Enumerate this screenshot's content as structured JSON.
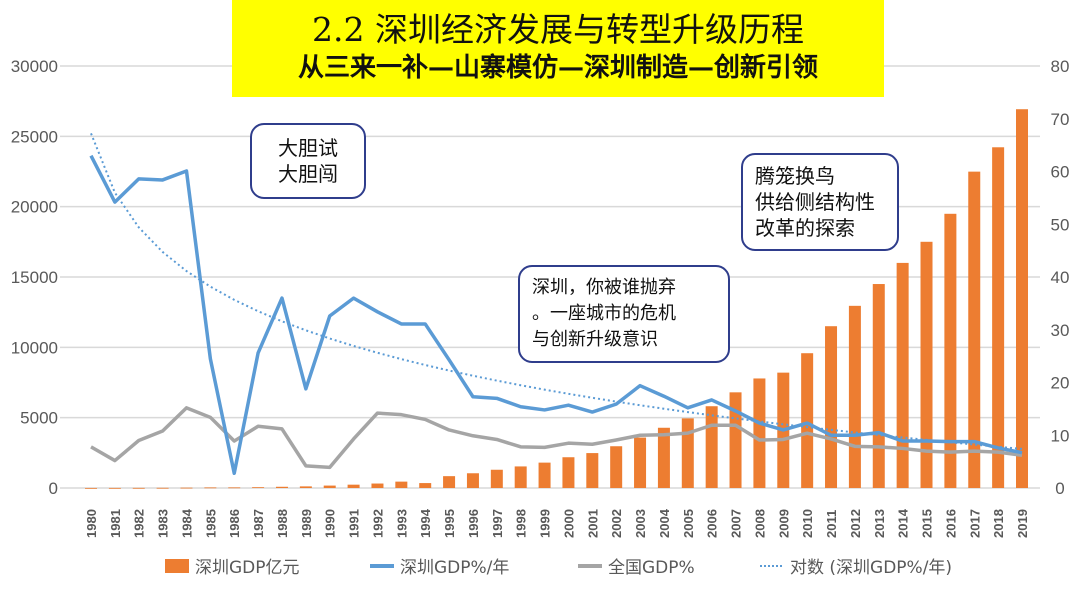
{
  "header": {
    "title": "2.2 深圳经济发展与转型升级历程",
    "subtitle": "从三来一补—山寨模仿—深圳制造—创新引领"
  },
  "annotations": [
    {
      "lines": [
        "大胆试",
        "大胆闯"
      ]
    },
    {
      "lines": [
        "深圳，你被谁抛弃",
        "。一座城市的危机",
        "与创新升级意识"
      ]
    },
    {
      "lines": [
        "腾笼换鸟",
        "供给侧结构性",
        "改革的探索"
      ]
    }
  ],
  "chart_data": {
    "type": "bar+line",
    "categories": [
      "1980",
      "1981",
      "1982",
      "1983",
      "1984",
      "1985",
      "1986",
      "1987",
      "1988",
      "1989",
      "1990",
      "1991",
      "1992",
      "1993",
      "1994",
      "1995",
      "1996",
      "1997",
      "1998",
      "1999",
      "2000",
      "2001",
      "2002",
      "2003",
      "2004",
      "2005",
      "2006",
      "2007",
      "2008",
      "2009",
      "2010",
      "2011",
      "2012",
      "2013",
      "2014",
      "2015",
      "2016",
      "2017",
      "2018",
      "2019"
    ],
    "left_axis": {
      "range": [
        0,
        30000
      ],
      "ticks": [
        "0",
        "5000",
        "10000",
        "15000",
        "20000",
        "25000",
        "30000"
      ]
    },
    "right_axis": {
      "range": [
        0,
        80
      ],
      "ticks": [
        "0",
        "10",
        "20",
        "30",
        "40",
        "50",
        "60",
        "70",
        "80"
      ]
    },
    "grid": "horizontal",
    "legend_placement": "bottom",
    "series": [
      {
        "name": "深圳GDP亿元",
        "type": "bar",
        "axis": "left",
        "color": "#ed7d31",
        "values": [
          2.7,
          5,
          8.3,
          13,
          23.4,
          39,
          41.7,
          55.9,
          86.9,
          115.7,
          171.7,
          236.7,
          317.3,
          453.1,
          350,
          842,
          1048,
          1297,
          1534,
          1804,
          2187,
          2482,
          2969,
          3585,
          4282,
          4950,
          5813,
          6801,
          7787,
          8201,
          9582,
          11502,
          12950,
          14500,
          16002,
          17503,
          19493,
          22490,
          24222,
          26927
        ]
      },
      {
        "name": "深圳GDP%/年",
        "type": "line",
        "axis": "right",
        "color": "#5b9bd5",
        "values": [
          63,
          54.2,
          58.6,
          58.4,
          60.1,
          24.5,
          2.8,
          25.6,
          36,
          18.8,
          32.6,
          36,
          33.4,
          31.1,
          31.1,
          24.3,
          17.3,
          17,
          15.4,
          14.8,
          15.7,
          14.4,
          15.9,
          19.4,
          17.4,
          15.2,
          16.7,
          14.6,
          12.3,
          11,
          12.3,
          10,
          10,
          10.5,
          8.9,
          8.9,
          8.8,
          8.8,
          7.6,
          6.7
        ]
      },
      {
        "name": "全国GDP%",
        "type": "line",
        "axis": "right",
        "color": "#a5a5a5",
        "values": [
          7.8,
          5.2,
          9.0,
          10.8,
          15.2,
          13.4,
          8.9,
          11.7,
          11.2,
          4.2,
          3.9,
          9.3,
          14.2,
          13.9,
          13.0,
          11.0,
          9.9,
          9.2,
          7.8,
          7.7,
          8.5,
          8.3,
          9.1,
          10.0,
          10.1,
          10.4,
          11.9,
          11.9,
          9.1,
          9.2,
          10.4,
          9.3,
          7.9,
          7.8,
          7.5,
          7.0,
          6.8,
          7.0,
          6.8,
          6.2
        ]
      },
      {
        "name": "对数 (深圳GDP%/年)",
        "type": "trendline-log",
        "axis": "right",
        "color": "#5b9bd5",
        "of": "深圳GDP%/年"
      }
    ]
  }
}
